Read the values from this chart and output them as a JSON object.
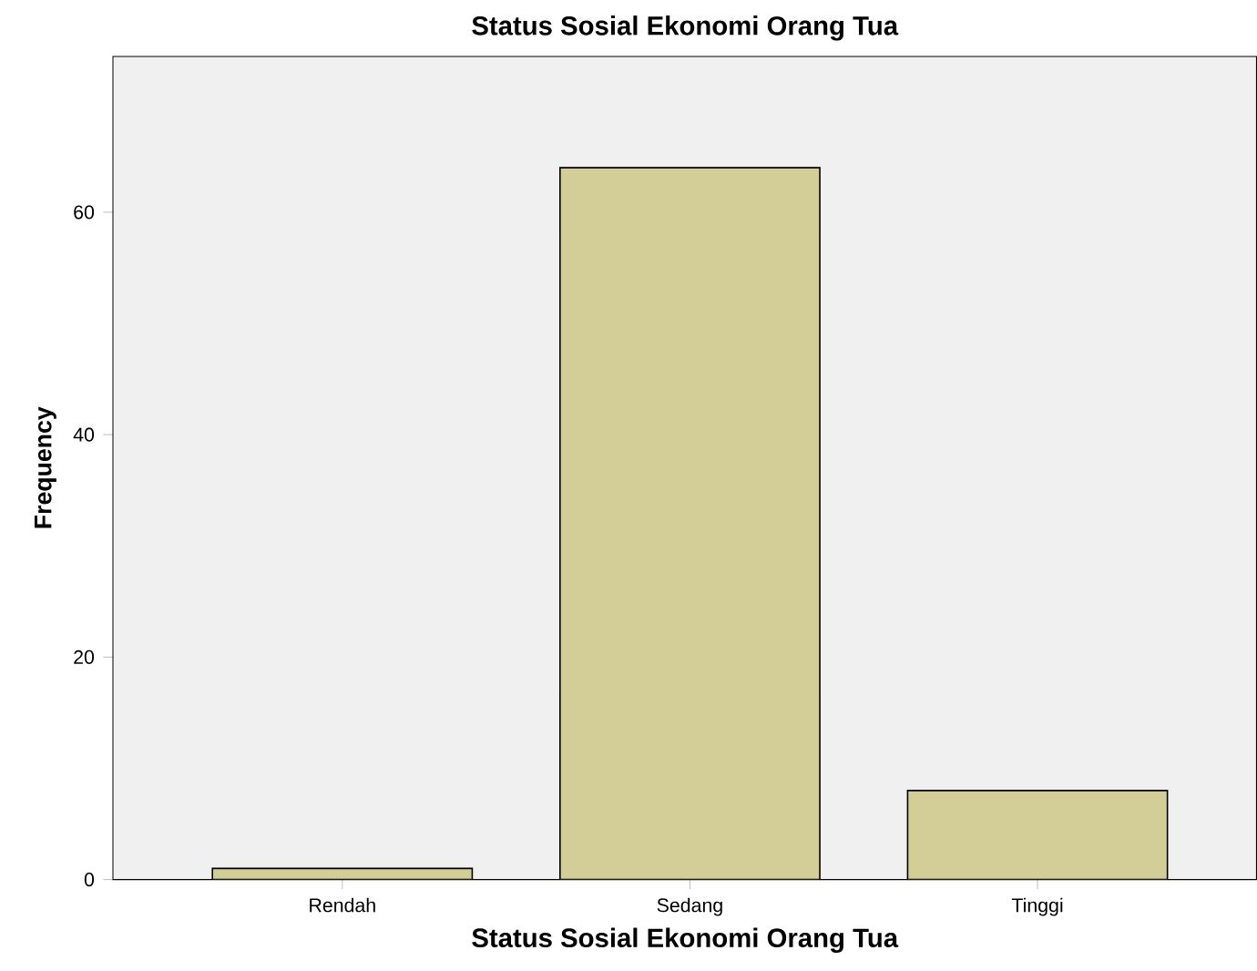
{
  "chart_data": {
    "type": "bar",
    "title": "Status Sosial Ekonomi Orang Tua",
    "xlabel": "Status Sosial Ekonomi Orang Tua",
    "ylabel": "Frequency",
    "categories": [
      "Rendah",
      "Sedang",
      "Tinggi"
    ],
    "values": [
      1,
      64,
      8
    ],
    "color": "#d3ce97",
    "ylim": [
      0,
      74
    ],
    "yticks": [
      0,
      20,
      40,
      60
    ]
  }
}
